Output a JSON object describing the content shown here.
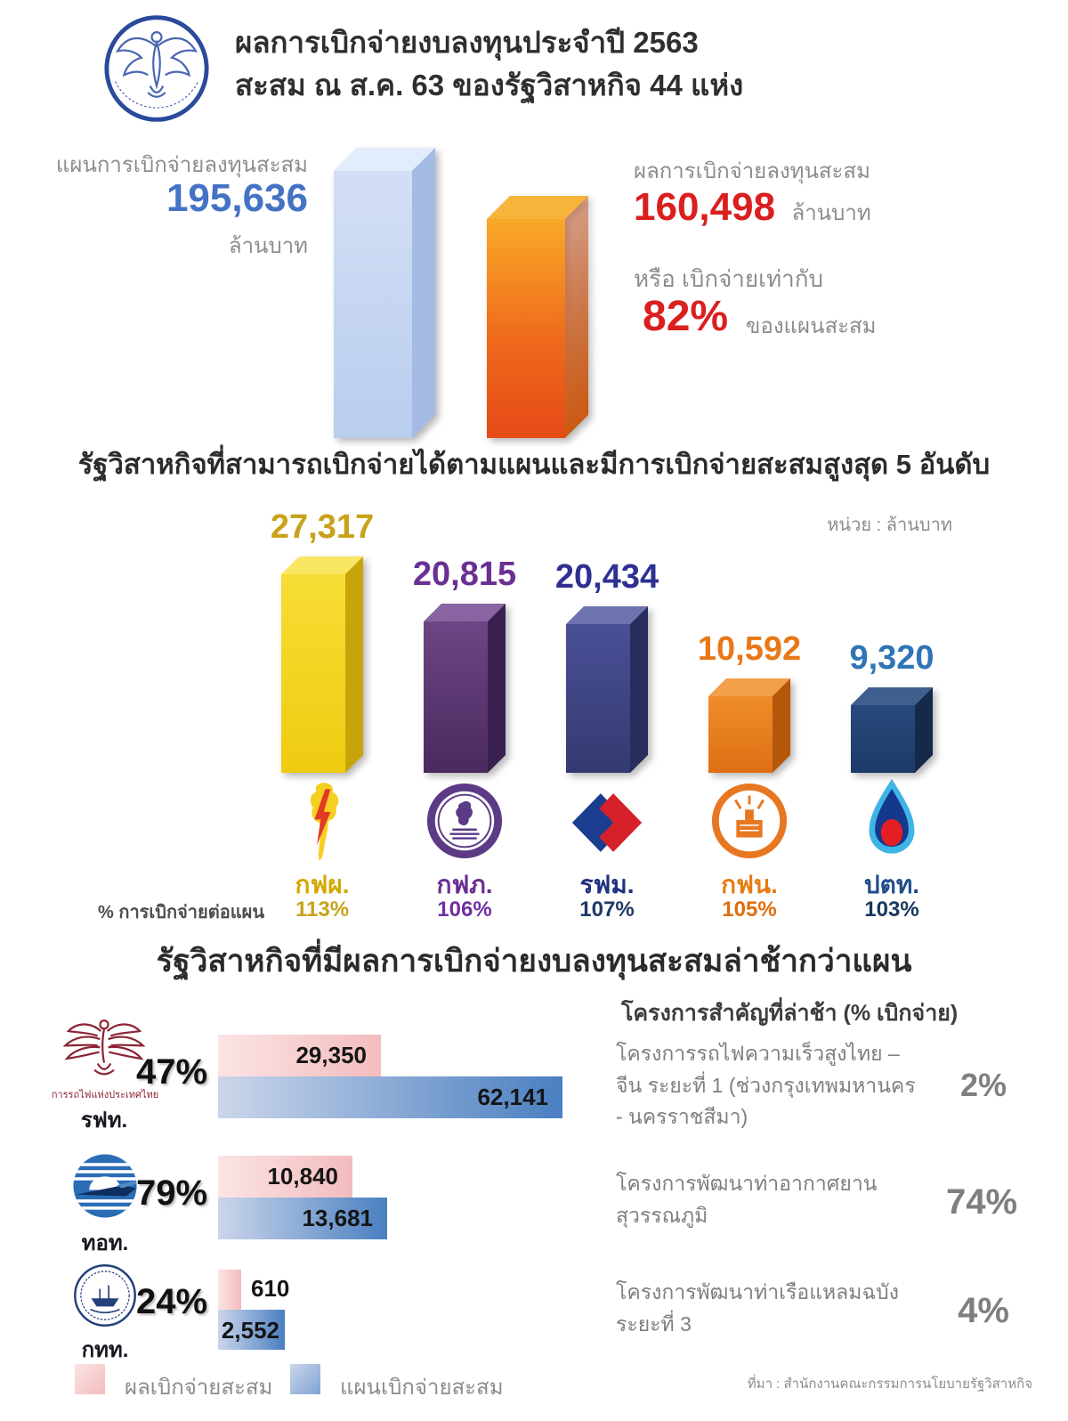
{
  "header": {
    "logo_name": "sepo-emblem",
    "title_line1": "ผลการเบิกจ่ายงบลงทุนประจำปี 2563",
    "title_line2": "สะสม ณ ส.ค. 63 ของรัฐวิสาหกิจ 44 แห่ง"
  },
  "summary": {
    "plan_label": "แผนการเบิกจ่ายลงทุนสะสม",
    "plan_value": "195,636",
    "plan_unit": "ล้านบาท",
    "result_label": "ผลการเบิกจ่ายลงทุนสะสม",
    "result_value": "160,498",
    "result_unit": "ล้านบาท",
    "or_label": "หรือ เบิกจ่ายเท่ากับ",
    "percent_value": "82%",
    "percent_suffix": "ของแผนสะสม"
  },
  "top5_section": {
    "title": "รัฐวิสาหกิจที่สามารถเบิกจ่ายได้ตามแผนและมีการเบิกจ่ายสะสมสูงสุด 5 อันดับ",
    "unit_note": "หน่วย : ล้านบาท",
    "percent_row_label": "% การเบิกจ่ายต่อแผน"
  },
  "delayed_section": {
    "title": "รัฐวิสาหกิจที่มีผลการเบิกจ่ายงบลงทุนสะสมล่าช้ากว่าแผน",
    "projects_header": "โครงการสำคัญที่ล่าช้า (% เบิกจ่าย)",
    "srt_full_name": "การรถไฟแห่งประเทศไทย",
    "projects": [
      {
        "name": "โครงการรถไฟความเร็วสูงไทย – จีน ระยะที่ 1 (ช่วงกรุงเทพมหานคร - นครราชสีมา)",
        "percent": "2%"
      },
      {
        "name": "โครงการพัฒนาท่าอากาศยาน สุวรรณภูมิ",
        "percent": "74%"
      },
      {
        "name": "โครงการพัฒนาท่าเรือแหลมฉบัง ระยะที่ 3",
        "percent": "4%"
      }
    ]
  },
  "legend": {
    "actual_label": "ผลเบิกจ่ายสะสม",
    "plan_label": "แผนเบิกจ่ายสะสม",
    "actual_color": "#f3bcbe",
    "plan_color": "#4a7fc1"
  },
  "source": "ที่มา : สำนักงานคณะกรรมการนโยบายรัฐวิสาหกิจ",
  "chart_data": [
    {
      "type": "bar",
      "title": "ผลการเบิกจ่ายงบลงทุนประจำปี 2563 สะสม ณ ส.ค. 63 ของรัฐวิสาหกิจ 44 แห่ง",
      "categories": [
        "แผนการเบิกจ่ายลงทุนสะสม",
        "ผลการเบิกจ่ายลงทุนสะสม"
      ],
      "values": [
        195636,
        160498
      ],
      "value_labels": [
        "195,636",
        "160,498"
      ],
      "unit": "ล้านบาท",
      "percent_of_plan": "82%",
      "bar_colors": [
        "#b9cdee",
        "#ef6a1c"
      ]
    },
    {
      "type": "bar",
      "title": "รัฐวิสาหกิจที่สามารถเบิกจ่ายได้ตามแผนและมีการเบิกจ่ายสะสมสูงสุด 5 อันดับ",
      "unit": "ล้านบาท",
      "categories": [
        "กฟผ.",
        "กฟภ.",
        "รฟม.",
        "กฟน.",
        "ปตท."
      ],
      "values": [
        27317,
        20815,
        20434,
        10592,
        9320
      ],
      "value_labels": [
        "27,317",
        "20,815",
        "20,434",
        "10,592",
        "9,320"
      ],
      "percent_of_plan": [
        "113%",
        "106%",
        "107%",
        "105%",
        "103%"
      ],
      "bar_colors": [
        "#eecb10",
        "#5a3671",
        "#3e4387",
        "#dd6f12",
        "#1d3a66"
      ],
      "label_colors": [
        "#c9a21b",
        "#6a3093",
        "#2e3192",
        "#e87817",
        "#2e75b6"
      ],
      "abbr_colors": [
        "#d4a800",
        "#6a2d91",
        "#1f3080",
        "#e87c12",
        "#1f4e89"
      ],
      "pct_colors": [
        "#c9a21b",
        "#7030a0",
        "#1f3864",
        "#e36c0a",
        "#17375e"
      ],
      "logos": [
        "egat-logo",
        "pea-logo",
        "mrta-logo",
        "mea-logo",
        "ptt-logo"
      ]
    },
    {
      "type": "bar",
      "orientation": "horizontal",
      "title": "รัฐวิสาหกิจที่มีผลการเบิกจ่ายงบลงทุนสะสมล่าช้ากว่าแผน",
      "categories": [
        "รฟท.",
        "ทอท.",
        "กทท."
      ],
      "series": [
        {
          "name": "ผลเบิกจ่ายสะสม",
          "values": [
            29350,
            10840,
            610
          ],
          "value_labels": [
            "29,350",
            "10,840",
            "610"
          ]
        },
        {
          "name": "แผนเบิกจ่ายสะสม",
          "values": [
            62141,
            13681,
            2552
          ],
          "value_labels": [
            "62,141",
            "13,681",
            "2,552"
          ]
        }
      ],
      "percent_disbursed": [
        "47%",
        "79%",
        "24%"
      ],
      "logos": [
        "srt-logo",
        "aot-logo",
        "pat-logo"
      ],
      "legend_position": "bottom"
    }
  ]
}
